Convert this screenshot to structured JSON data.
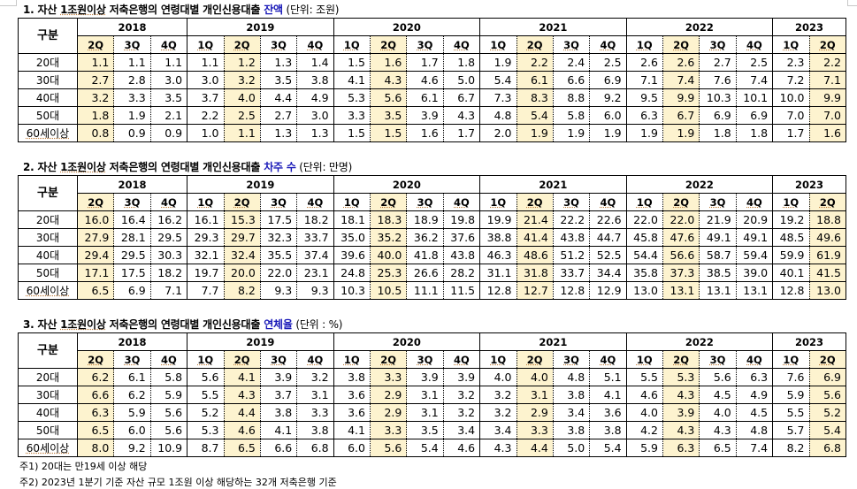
{
  "quarters": [
    {
      "year": "2018",
      "q": "2Q"
    },
    {
      "year": "2018",
      "q": "3Q"
    },
    {
      "year": "2018",
      "q": "4Q"
    },
    {
      "year": "2019",
      "q": "1Q"
    },
    {
      "year": "2019",
      "q": "2Q"
    },
    {
      "year": "2019",
      "q": "3Q"
    },
    {
      "year": "2019",
      "q": "4Q"
    },
    {
      "year": "2020",
      "q": "1Q"
    },
    {
      "year": "2020",
      "q": "2Q"
    },
    {
      "year": "2020",
      "q": "3Q"
    },
    {
      "year": "2020",
      "q": "4Q"
    },
    {
      "year": "2021",
      "q": "1Q"
    },
    {
      "year": "2021",
      "q": "2Q"
    },
    {
      "year": "2021",
      "q": "3Q"
    },
    {
      "year": "2021",
      "q": "4Q"
    },
    {
      "year": "2022",
      "q": "1Q"
    },
    {
      "year": "2022",
      "q": "2Q"
    },
    {
      "year": "2022",
      "q": "3Q"
    },
    {
      "year": "2022",
      "q": "4Q"
    },
    {
      "year": "2023",
      "q": "1Q"
    },
    {
      "year": "2023",
      "q": "2Q"
    }
  ],
  "years": [
    {
      "label": "2018",
      "span": 3
    },
    {
      "label": "2019",
      "span": 4
    },
    {
      "label": "2020",
      "span": 4
    },
    {
      "label": "2021",
      "span": 4
    },
    {
      "label": "2022",
      "span": 4
    },
    {
      "label": "2023",
      "span": 2
    }
  ],
  "highlight_color": "#fdf3cf",
  "accent_color": "#1a1ab8",
  "row_header_label": "구분",
  "tables": [
    {
      "title_prefix": "1. 자산 ",
      "title_ul": "1조원이상",
      "title_mid": " 저축은행의 연령대별 개인신용대출 ",
      "title_highlight": "잔액",
      "title_unit": " (단위: 조원)",
      "rows": [
        {
          "label": "20대",
          "values": [
            "1.1",
            "1.1",
            "1.1",
            "1.1",
            "1.2",
            "1.3",
            "1.4",
            "1.5",
            "1.6",
            "1.7",
            "1.8",
            "1.9",
            "2.2",
            "2.4",
            "2.5",
            "2.6",
            "2.6",
            "2.7",
            "2.5",
            "2.3",
            "2.2"
          ]
        },
        {
          "label": "30대",
          "values": [
            "2.7",
            "2.8",
            "3.0",
            "3.0",
            "3.2",
            "3.5",
            "3.8",
            "4.1",
            "4.3",
            "4.6",
            "5.0",
            "5.4",
            "6.1",
            "6.6",
            "6.9",
            "7.1",
            "7.4",
            "7.6",
            "7.4",
            "7.2",
            "7.1"
          ]
        },
        {
          "label": "40대",
          "values": [
            "3.2",
            "3.3",
            "3.5",
            "3.7",
            "4.0",
            "4.4",
            "4.9",
            "5.3",
            "5.6",
            "6.1",
            "6.7",
            "7.3",
            "8.3",
            "8.8",
            "9.2",
            "9.5",
            "9.9",
            "10.3",
            "10.1",
            "10.0",
            "9.9"
          ]
        },
        {
          "label": "50대",
          "values": [
            "1.8",
            "1.9",
            "2.1",
            "2.2",
            "2.5",
            "2.7",
            "3.0",
            "3.3",
            "3.5",
            "3.9",
            "4.3",
            "4.8",
            "5.4",
            "5.8",
            "6.0",
            "6.3",
            "6.7",
            "6.9",
            "6.9",
            "7.0",
            "7.0"
          ]
        },
        {
          "label": "60세이상",
          "values": [
            "0.8",
            "0.9",
            "0.9",
            "1.0",
            "1.1",
            "1.3",
            "1.3",
            "1.5",
            "1.5",
            "1.6",
            "1.7",
            "2.0",
            "1.9",
            "1.9",
            "1.9",
            "1.9",
            "1.9",
            "1.8",
            "1.8",
            "1.7",
            "1.6"
          ]
        }
      ]
    },
    {
      "title_prefix": "2. 자산 ",
      "title_ul": "1조원이상",
      "title_mid": " 저축은행의 연령대별 개인신용대출 ",
      "title_highlight": "차주 수",
      "title_unit": " (단위: 만명)",
      "rows": [
        {
          "label": "20대",
          "values": [
            "16.0",
            "16.4",
            "16.2",
            "16.1",
            "15.3",
            "17.5",
            "18.2",
            "18.1",
            "18.3",
            "18.9",
            "19.8",
            "19.9",
            "21.4",
            "22.2",
            "22.6",
            "22.0",
            "22.0",
            "21.9",
            "20.9",
            "19.2",
            "18.8"
          ]
        },
        {
          "label": "30대",
          "values": [
            "27.9",
            "28.1",
            "29.5",
            "29.3",
            "29.7",
            "32.3",
            "33.7",
            "35.0",
            "35.2",
            "36.2",
            "37.6",
            "38.8",
            "41.4",
            "43.8",
            "44.7",
            "45.8",
            "47.6",
            "49.1",
            "49.1",
            "48.5",
            "49.6"
          ]
        },
        {
          "label": "40대",
          "values": [
            "29.4",
            "29.5",
            "30.3",
            "32.1",
            "32.4",
            "35.5",
            "37.4",
            "39.6",
            "40.0",
            "41.8",
            "43.8",
            "46.3",
            "48.6",
            "51.2",
            "52.5",
            "54.4",
            "56.6",
            "58.7",
            "59.4",
            "59.9",
            "61.9"
          ]
        },
        {
          "label": "50대",
          "values": [
            "17.1",
            "17.5",
            "18.2",
            "19.7",
            "20.0",
            "22.0",
            "23.1",
            "24.8",
            "25.3",
            "26.6",
            "28.2",
            "31.1",
            "31.8",
            "33.7",
            "34.4",
            "35.8",
            "37.3",
            "38.5",
            "39.0",
            "40.1",
            "41.5"
          ]
        },
        {
          "label": "60세이상",
          "values": [
            "6.5",
            "6.9",
            "7.1",
            "7.7",
            "8.2",
            "9.3",
            "9.3",
            "10.3",
            "10.5",
            "11.1",
            "11.5",
            "12.8",
            "12.7",
            "12.8",
            "12.9",
            "13.0",
            "13.1",
            "13.1",
            "13.1",
            "12.8",
            "13.0"
          ]
        }
      ]
    },
    {
      "title_prefix": "3. 자산 ",
      "title_ul": "1조원이상",
      "title_mid": " 저축은행의 연령대별 개인신용대출 ",
      "title_highlight": "연체율",
      "title_unit": " (단위 : %)",
      "rows": [
        {
          "label": "20대",
          "values": [
            "6.2",
            "6.1",
            "5.8",
            "5.6",
            "4.1",
            "3.9",
            "3.2",
            "3.8",
            "3.3",
            "3.9",
            "3.9",
            "4.0",
            "4.0",
            "4.8",
            "5.1",
            "5.5",
            "5.3",
            "5.6",
            "6.3",
            "7.6",
            "6.9"
          ]
        },
        {
          "label": "30대",
          "values": [
            "6.6",
            "6.2",
            "5.9",
            "5.5",
            "4.3",
            "3.7",
            "3.1",
            "3.6",
            "2.9",
            "3.1",
            "3.2",
            "3.2",
            "3.1",
            "3.8",
            "4.1",
            "4.6",
            "4.3",
            "4.5",
            "4.9",
            "5.9",
            "5.6"
          ]
        },
        {
          "label": "40대",
          "values": [
            "6.3",
            "5.9",
            "5.6",
            "5.2",
            "4.4",
            "3.8",
            "3.3",
            "3.6",
            "2.9",
            "3.1",
            "3.2",
            "3.2",
            "2.9",
            "3.4",
            "3.6",
            "4.0",
            "3.9",
            "4.0",
            "4.5",
            "5.5",
            "5.2"
          ]
        },
        {
          "label": "50대",
          "values": [
            "6.5",
            "6.0",
            "5.6",
            "5.3",
            "4.6",
            "4.1",
            "3.8",
            "4.1",
            "3.3",
            "3.5",
            "3.4",
            "3.4",
            "3.3",
            "3.8",
            "3.8",
            "4.2",
            "4.3",
            "4.3",
            "4.8",
            "5.7",
            "5.4"
          ]
        },
        {
          "label": "60세이상",
          "values": [
            "8.0",
            "9.2",
            "10.9",
            "8.7",
            "6.5",
            "6.6",
            "6.8",
            "6.0",
            "5.6",
            "5.4",
            "4.6",
            "4.3",
            "4.4",
            "5.0",
            "5.4",
            "5.9",
            "6.3",
            "6.5",
            "7.4",
            "8.2",
            "6.8"
          ]
        }
      ]
    }
  ],
  "notes": [
    "주1) 20대는 만19세 이상 해당",
    "주2) 2023년 1분기 기준 자산 규모 1조원 이상 해당하는 32개 저축은행 기준"
  ]
}
